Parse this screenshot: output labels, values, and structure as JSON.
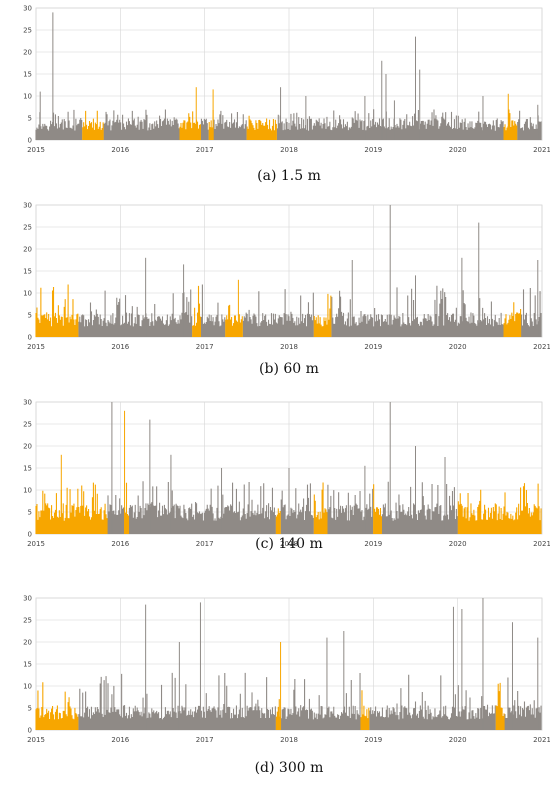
{
  "figure": {
    "panels": [
      {
        "caption": "(a) 1.5 m"
      },
      {
        "caption": "(b) 60 m"
      },
      {
        "caption": "(c) 140 m"
      },
      {
        "caption": "(d) 300 m"
      }
    ]
  },
  "colors": {
    "gray_series": "#8f8a86",
    "orange_series": "#f7a600",
    "grid": "#d6d6d6",
    "axis_text": "#444444"
  },
  "chart_data": [
    {
      "type": "line",
      "title": "(a) 1.5 m",
      "x_range": [
        2015.0,
        2021.0
      ],
      "ylim": [
        0,
        30
      ],
      "yticks": [
        "0",
        "5",
        "10",
        "15",
        "20",
        "25",
        "30"
      ],
      "xticks": [
        "2015",
        "2016",
        "2017",
        "2018",
        "2019",
        "2020",
        "2021"
      ],
      "grid": true,
      "base_level": 3.5,
      "orange_segments": [
        [
          2015.55,
          2015.8
        ],
        [
          2016.7,
          2016.95
        ],
        [
          2017.05,
          2017.1
        ],
        [
          2017.5,
          2017.85
        ],
        [
          2020.55,
          2020.7
        ]
      ],
      "spikes": [
        [
          2015.2,
          29
        ],
        [
          2015.05,
          11
        ],
        [
          2016.9,
          12
        ],
        [
          2017.1,
          11.5
        ],
        [
          2017.9,
          12
        ],
        [
          2018.2,
          10
        ],
        [
          2018.9,
          10
        ],
        [
          2019.1,
          18
        ],
        [
          2019.15,
          15
        ],
        [
          2019.5,
          23.5
        ],
        [
          2019.55,
          16
        ],
        [
          2019.25,
          9
        ],
        [
          2020.3,
          10
        ],
        [
          2020.6,
          10.5
        ],
        [
          2020.95,
          8
        ]
      ],
      "noise_max": 7
    },
    {
      "type": "line",
      "title": "(b) 60 m",
      "x_range": [
        2015.0,
        2021.0
      ],
      "ylim": [
        0,
        30
      ],
      "yticks": [
        "0",
        "5",
        "10",
        "15",
        "20",
        "25",
        "30"
      ],
      "xticks": [
        "2015",
        "2016",
        "2017",
        "2018",
        "2019",
        "2020",
        "2021"
      ],
      "grid": true,
      "base_level": 4,
      "orange_segments": [
        [
          2015.0,
          2015.5
        ],
        [
          2016.85,
          2016.95
        ],
        [
          2017.25,
          2017.45
        ],
        [
          2018.3,
          2018.5
        ],
        [
          2020.55,
          2020.75
        ]
      ],
      "spikes": [
        [
          2015.2,
          9.5
        ],
        [
          2016.3,
          18
        ],
        [
          2016.75,
          16.5
        ],
        [
          2017.4,
          13
        ],
        [
          2018.75,
          17.5
        ],
        [
          2019.2,
          30
        ],
        [
          2019.5,
          14
        ],
        [
          2020.05,
          18
        ],
        [
          2020.25,
          26
        ],
        [
          2020.95,
          17.5
        ]
      ],
      "noise_max": 12
    },
    {
      "type": "line",
      "title": "(c) 140 m",
      "x_range": [
        2015.0,
        2021.0
      ],
      "ylim": [
        0,
        30
      ],
      "yticks": [
        "0",
        "5",
        "10",
        "15",
        "20",
        "25",
        "30"
      ],
      "xticks": [
        "2015",
        "2016",
        "2017",
        "2018",
        "2019",
        "2020",
        "2021"
      ],
      "grid": true,
      "base_level": 5,
      "orange_segments": [
        [
          2015.0,
          2015.85
        ],
        [
          2016.05,
          2016.1
        ],
        [
          2017.85,
          2017.9
        ],
        [
          2018.3,
          2018.45
        ],
        [
          2019.0,
          2019.1
        ],
        [
          2020.0,
          2021.0
        ]
      ],
      "spikes": [
        [
          2015.3,
          18
        ],
        [
          2015.9,
          30
        ],
        [
          2016.05,
          28
        ],
        [
          2016.35,
          26
        ],
        [
          2016.6,
          18
        ],
        [
          2017.2,
          15
        ],
        [
          2018.0,
          15
        ],
        [
          2018.9,
          15.5
        ],
        [
          2019.2,
          30
        ],
        [
          2019.5,
          20
        ],
        [
          2019.85,
          17.5
        ]
      ],
      "noise_max": 12
    },
    {
      "type": "line",
      "title": "(d) 300 m",
      "x_range": [
        2015.0,
        2021.0
      ],
      "ylim": [
        0,
        30
      ],
      "yticks": [
        "0",
        "5",
        "10",
        "15",
        "20",
        "25",
        "30"
      ],
      "xticks": [
        "2015",
        "2016",
        "2017",
        "2018",
        "2019",
        "2020",
        "2021"
      ],
      "grid": true,
      "base_level": 4,
      "orange_segments": [
        [
          2015.0,
          2015.5
        ],
        [
          2017.85,
          2017.9
        ],
        [
          2018.85,
          2018.95
        ],
        [
          2020.45,
          2020.55
        ]
      ],
      "spikes": [
        [
          2016.3,
          28.5
        ],
        [
          2016.95,
          29
        ],
        [
          2016.7,
          20
        ],
        [
          2017.9,
          20
        ],
        [
          2018.45,
          21
        ],
        [
          2018.65,
          22.5
        ],
        [
          2019.95,
          28
        ],
        [
          2020.05,
          27.5
        ],
        [
          2020.3,
          30
        ],
        [
          2020.65,
          24.5
        ],
        [
          2020.95,
          21
        ]
      ],
      "noise_max": 13
    }
  ]
}
